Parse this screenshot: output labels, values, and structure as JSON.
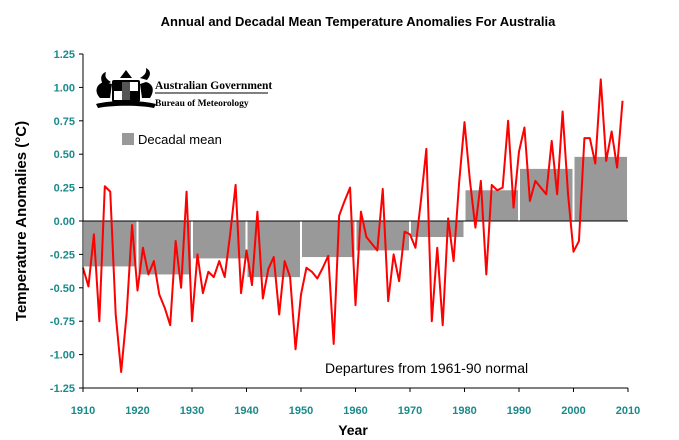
{
  "chart_data": {
    "type": "bar",
    "title": "Annual and Decadal Mean Temperature Anomalies For Australia",
    "xlabel": "Year",
    "ylabel": "Temperature Anomalies (°C)",
    "xlim": [
      1910,
      2010
    ],
    "ylim": [
      -1.25,
      1.25
    ],
    "x_ticks": [
      "1910",
      "1920",
      "1930",
      "1940",
      "1950",
      "1960",
      "1970",
      "1980",
      "1990",
      "2000",
      "2010"
    ],
    "y_ticks": [
      "1.25",
      "1.00",
      "0.75",
      "0.50",
      "0.25",
      "0.00",
      "-0.25",
      "-0.50",
      "-0.75",
      "-1.00",
      "-1.25"
    ],
    "grid": false,
    "legend": {
      "position": "top-left",
      "label": "Decadal mean"
    },
    "annotation": "Departures from 1961-90 normal",
    "colors": {
      "bar": "#999999",
      "line": "#ff0000",
      "axis_text": "#1a8a8a"
    },
    "series": [
      {
        "type": "bar",
        "decades": [
          {
            "start": 1910,
            "end": 1920,
            "value": -0.34
          },
          {
            "start": 1920,
            "end": 1930,
            "value": -0.4
          },
          {
            "start": 1930,
            "end": 1940,
            "value": -0.28
          },
          {
            "start": 1940,
            "end": 1950,
            "value": -0.42
          },
          {
            "start": 1950,
            "end": 1960,
            "value": -0.27
          },
          {
            "start": 1960,
            "end": 1970,
            "value": -0.22
          },
          {
            "start": 1970,
            "end": 1980,
            "value": -0.12
          },
          {
            "start": 1980,
            "end": 1990,
            "value": 0.23
          },
          {
            "start": 1990,
            "end": 2000,
            "value": 0.39
          },
          {
            "start": 2000,
            "end": 2010,
            "value": 0.48
          }
        ]
      },
      {
        "type": "line",
        "x": [
          1910,
          1911,
          1912,
          1913,
          1914,
          1915,
          1916,
          1917,
          1918,
          1919,
          1920,
          1921,
          1922,
          1923,
          1924,
          1925,
          1926,
          1927,
          1928,
          1929,
          1930,
          1931,
          1932,
          1933,
          1934,
          1935,
          1936,
          1937,
          1938,
          1939,
          1940,
          1941,
          1942,
          1943,
          1944,
          1945,
          1946,
          1947,
          1948,
          1949,
          1950,
          1951,
          1952,
          1953,
          1954,
          1955,
          1956,
          1957,
          1958,
          1959,
          1960,
          1961,
          1962,
          1963,
          1964,
          1965,
          1966,
          1967,
          1968,
          1969,
          1970,
          1971,
          1972,
          1973,
          1974,
          1975,
          1976,
          1977,
          1978,
          1979,
          1980,
          1981,
          1982,
          1983,
          1984,
          1985,
          1986,
          1987,
          1988,
          1989,
          1990,
          1991,
          1992,
          1993,
          1994,
          1995,
          1996,
          1997,
          1998,
          1999,
          2000,
          2001,
          2002,
          2003,
          2004,
          2005,
          2006,
          2007,
          2008,
          2009
        ],
        "values": [
          -0.35,
          -0.49,
          -0.1,
          -0.75,
          0.26,
          0.22,
          -0.7,
          -1.13,
          -0.7,
          -0.03,
          -0.52,
          -0.2,
          -0.4,
          -0.3,
          -0.55,
          -0.65,
          -0.78,
          -0.15,
          -0.5,
          0.22,
          -0.75,
          -0.25,
          -0.54,
          -0.38,
          -0.42,
          -0.3,
          -0.42,
          -0.1,
          0.27,
          -0.54,
          -0.22,
          -0.48,
          0.07,
          -0.58,
          -0.36,
          -0.27,
          -0.7,
          -0.3,
          -0.42,
          -0.96,
          -0.55,
          -0.35,
          -0.38,
          -0.43,
          -0.35,
          -0.26,
          -0.92,
          0.04,
          0.15,
          0.25,
          -0.63,
          0.07,
          -0.12,
          -0.17,
          -0.22,
          0.24,
          -0.6,
          -0.25,
          -0.45,
          -0.08,
          -0.1,
          -0.2,
          0.15,
          0.54,
          -0.75,
          -0.2,
          -0.78,
          0.02,
          -0.3,
          0.28,
          0.74,
          0.3,
          -0.05,
          0.3,
          -0.4,
          0.27,
          0.23,
          0.25,
          0.75,
          0.1,
          0.52,
          0.7,
          0.15,
          0.3,
          0.25,
          0.2,
          0.6,
          0.2,
          0.82,
          0.2,
          -0.23,
          -0.15,
          0.62,
          0.62,
          0.43,
          1.06,
          0.45,
          0.67,
          0.4,
          0.9
        ]
      }
    ]
  },
  "logo": {
    "line1": "Australian Government",
    "line2": "Bureau of Meteorology"
  }
}
